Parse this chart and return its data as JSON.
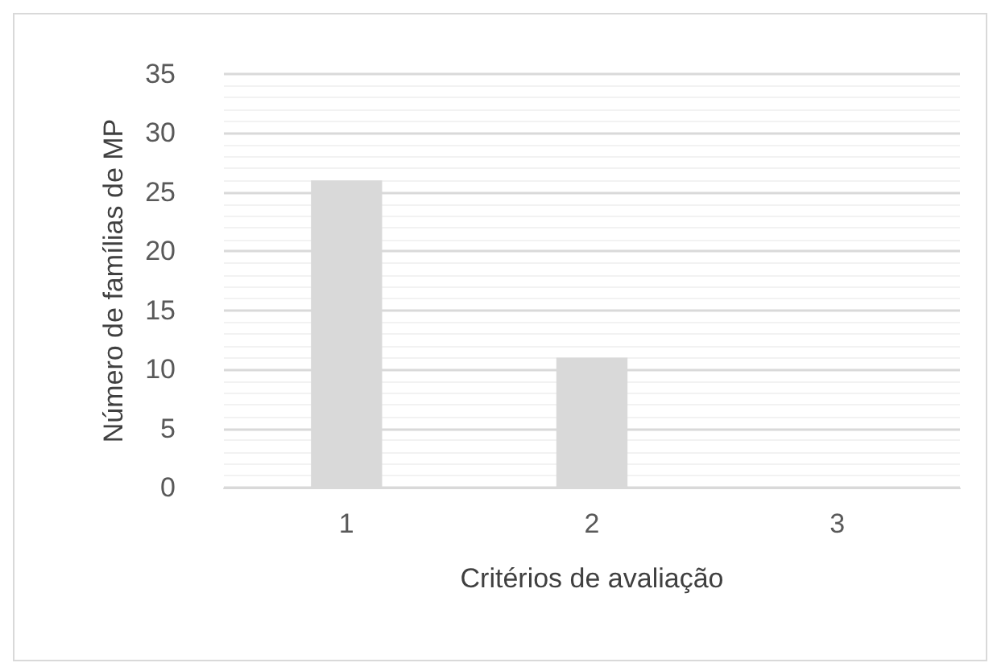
{
  "chart_data": {
    "type": "bar",
    "xlabel": "Critérios de avaliação",
    "ylabel": "Número de famílias de MP",
    "categories": [
      "1",
      "2",
      "3"
    ],
    "values": [
      26,
      11,
      0
    ],
    "color": "#d9d9d9",
    "ylim": [
      0,
      35
    ],
    "yticks": [
      0,
      5,
      10,
      15,
      20,
      25,
      30,
      35
    ],
    "grid": true
  }
}
